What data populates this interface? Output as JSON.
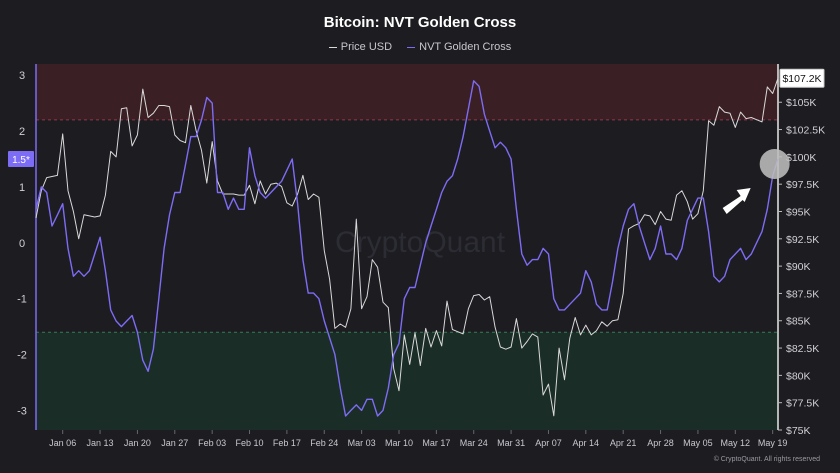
{
  "title": "Bitcoin: NVT Golden Cross",
  "legend": [
    {
      "label": "Price USD",
      "color": "#d9d9d9"
    },
    {
      "label": "NVT Golden Cross",
      "color": "#7d6cf5"
    }
  ],
  "watermark": "CryptoQuant",
  "footer": "© CryptoQuant. All rights reserved",
  "chart_data": {
    "type": "line",
    "x_ticks": [
      "Jan 06",
      "Jan 13",
      "Jan 20",
      "Jan 27",
      "Feb 03",
      "Feb 10",
      "Feb 17",
      "Feb 24",
      "Mar 03",
      "Mar 10",
      "Mar 17",
      "Mar 24",
      "Mar 31",
      "Apr 07",
      "Apr 14",
      "Apr 21",
      "Apr 28",
      "May 05",
      "May 12",
      "May 19"
    ],
    "x_range": [
      "2025-01-01",
      "2025-05-20"
    ],
    "y_left": {
      "ticks": [
        "3",
        "2",
        "1",
        "0",
        "-1",
        "-2",
        "-3"
      ],
      "range": [
        -3.35,
        3.2
      ]
    },
    "y_right": {
      "ticks": [
        "$105K",
        "$102.5K",
        "$100K",
        "$97.5K",
        "$95K",
        "$92.5K",
        "$90K",
        "$87.5K",
        "$85K",
        "$82.5K",
        "$80K",
        "$77.5K",
        "$75K"
      ],
      "range": [
        75000,
        108500
      ]
    },
    "left_marker": "1.5*",
    "right_marker": "$107.2K",
    "bands": [
      {
        "from": 2.2,
        "to": 3.2,
        "color": "#3a1f24"
      },
      {
        "from": -3.35,
        "to": -1.6,
        "color": "#1b2d27"
      }
    ],
    "series": [
      {
        "name": "Price USD",
        "axis": "right",
        "color": "#d9d9d9",
        "x": [
          "2025-01-01",
          "2025-01-02",
          "2025-01-03",
          "2025-01-04",
          "2025-01-05",
          "2025-01-06",
          "2025-01-07",
          "2025-01-08",
          "2025-01-09",
          "2025-01-10",
          "2025-01-11",
          "2025-01-12",
          "2025-01-13",
          "2025-01-14",
          "2025-01-15",
          "2025-01-16",
          "2025-01-17",
          "2025-01-18",
          "2025-01-19",
          "2025-01-20",
          "2025-01-21",
          "2025-01-22",
          "2025-01-23",
          "2025-01-24",
          "2025-01-25",
          "2025-01-26",
          "2025-01-27",
          "2025-01-28",
          "2025-01-29",
          "2025-01-30",
          "2025-01-31",
          "2025-02-01",
          "2025-02-02",
          "2025-02-03",
          "2025-02-04",
          "2025-02-05",
          "2025-02-06",
          "2025-02-07",
          "2025-02-08",
          "2025-02-09",
          "2025-02-10",
          "2025-02-11",
          "2025-02-12",
          "2025-02-13",
          "2025-02-14",
          "2025-02-15",
          "2025-02-16",
          "2025-02-17",
          "2025-02-18",
          "2025-02-19",
          "2025-02-20",
          "2025-02-21",
          "2025-02-22",
          "2025-02-23",
          "2025-02-24",
          "2025-02-25",
          "2025-02-26",
          "2025-02-27",
          "2025-02-28",
          "2025-03-01",
          "2025-03-02",
          "2025-03-03",
          "2025-03-04",
          "2025-03-05",
          "2025-03-06",
          "2025-03-07",
          "2025-03-08",
          "2025-03-09",
          "2025-03-10",
          "2025-03-11",
          "2025-03-12",
          "2025-03-13",
          "2025-03-14",
          "2025-03-15",
          "2025-03-16",
          "2025-03-17",
          "2025-03-18",
          "2025-03-19",
          "2025-03-20",
          "2025-03-21",
          "2025-03-22",
          "2025-03-23",
          "2025-03-24",
          "2025-03-25",
          "2025-03-26",
          "2025-03-27",
          "2025-03-28",
          "2025-03-29",
          "2025-03-30",
          "2025-03-31",
          "2025-04-01",
          "2025-04-02",
          "2025-04-03",
          "2025-04-04",
          "2025-04-05",
          "2025-04-06",
          "2025-04-07",
          "2025-04-08",
          "2025-04-09",
          "2025-04-10",
          "2025-04-11",
          "2025-04-12",
          "2025-04-13",
          "2025-04-14",
          "2025-04-15",
          "2025-04-16",
          "2025-04-17",
          "2025-04-18",
          "2025-04-19",
          "2025-04-20",
          "2025-04-21",
          "2025-04-22",
          "2025-04-23",
          "2025-04-24",
          "2025-04-25",
          "2025-04-26",
          "2025-04-27",
          "2025-04-28",
          "2025-04-29",
          "2025-04-30",
          "2025-05-01",
          "2025-05-02",
          "2025-05-03",
          "2025-05-04",
          "2025-05-05",
          "2025-05-06",
          "2025-05-07",
          "2025-05-08",
          "2025-05-09",
          "2025-05-10",
          "2025-05-11",
          "2025-05-12",
          "2025-05-13",
          "2025-05-14",
          "2025-05-15",
          "2025-05-16",
          "2025-05-17",
          "2025-05-18",
          "2025-05-19",
          "2025-05-20"
        ],
        "values": [
          94400,
          96900,
          98100,
          98200,
          98300,
          102100,
          96900,
          95000,
          92500,
          94700,
          94600,
          94500,
          94600,
          96500,
          100500,
          100000,
          104400,
          104500,
          101000,
          102000,
          106200,
          103600,
          104000,
          104700,
          104700,
          104600,
          102000,
          101500,
          101300,
          104700,
          102400,
          100600,
          97600,
          101400,
          97800,
          96600,
          96600,
          96600,
          96500,
          96500,
          97400,
          95700,
          97800,
          96600,
          97500,
          97600,
          97300,
          95800,
          95500,
          96600,
          98300,
          96100,
          96600,
          96300,
          91400,
          88800,
          84300,
          84700,
          84400,
          86100,
          94300,
          86100,
          87200,
          90600,
          89900,
          86700,
          86200,
          80600,
          78600,
          83700,
          81000,
          83900,
          80900,
          84300,
          82600,
          84100,
          82700,
          86800,
          84200,
          84000,
          83800,
          86100,
          87300,
          87400,
          86900,
          87200,
          84400,
          82600,
          82400,
          82600,
          85200,
          82500,
          83100,
          83800,
          83500,
          78200,
          79200,
          76300,
          82500,
          79600,
          83400,
          85300,
          83700,
          84600,
          83700,
          84100,
          84900,
          84500,
          85000,
          85100,
          87500,
          93400,
          93700,
          93900,
          94700,
          94600,
          93800,
          95000,
          94300,
          94200,
          96500,
          96900,
          95900,
          94300,
          94800,
          96900,
          103300,
          102900,
          104600,
          104100,
          104000,
          102700,
          104100,
          103500,
          103600,
          103400,
          103200,
          106400,
          105800,
          107200
        ]
      },
      {
        "name": "NVT Golden Cross",
        "axis": "left",
        "color": "#7d6cf5",
        "x": [
          "2025-01-01",
          "2025-01-02",
          "2025-01-03",
          "2025-01-04",
          "2025-01-05",
          "2025-01-06",
          "2025-01-07",
          "2025-01-08",
          "2025-01-09",
          "2025-01-10",
          "2025-01-11",
          "2025-01-12",
          "2025-01-13",
          "2025-01-14",
          "2025-01-15",
          "2025-01-16",
          "2025-01-17",
          "2025-01-18",
          "2025-01-19",
          "2025-01-20",
          "2025-01-21",
          "2025-01-22",
          "2025-01-23",
          "2025-01-24",
          "2025-01-25",
          "2025-01-26",
          "2025-01-27",
          "2025-01-28",
          "2025-01-29",
          "2025-01-30",
          "2025-01-31",
          "2025-02-01",
          "2025-02-02",
          "2025-02-03",
          "2025-02-04",
          "2025-02-05",
          "2025-02-06",
          "2025-02-07",
          "2025-02-08",
          "2025-02-09",
          "2025-02-10",
          "2025-02-11",
          "2025-02-12",
          "2025-02-13",
          "2025-02-14",
          "2025-02-15",
          "2025-02-16",
          "2025-02-17",
          "2025-02-18",
          "2025-02-19",
          "2025-02-20",
          "2025-02-21",
          "2025-02-22",
          "2025-02-23",
          "2025-02-24",
          "2025-02-25",
          "2025-02-26",
          "2025-02-27",
          "2025-02-28",
          "2025-03-01",
          "2025-03-02",
          "2025-03-03",
          "2025-03-04",
          "2025-03-05",
          "2025-03-06",
          "2025-03-07",
          "2025-03-08",
          "2025-03-09",
          "2025-03-10",
          "2025-03-11",
          "2025-03-12",
          "2025-03-13",
          "2025-03-14",
          "2025-03-15",
          "2025-03-16",
          "2025-03-17",
          "2025-03-18",
          "2025-03-19",
          "2025-03-20",
          "2025-03-21",
          "2025-03-22",
          "2025-03-23",
          "2025-03-24",
          "2025-03-25",
          "2025-03-26",
          "2025-03-27",
          "2025-03-28",
          "2025-03-29",
          "2025-03-30",
          "2025-03-31",
          "2025-04-01",
          "2025-04-02",
          "2025-04-03",
          "2025-04-04",
          "2025-04-05",
          "2025-04-06",
          "2025-04-07",
          "2025-04-08",
          "2025-04-09",
          "2025-04-10",
          "2025-04-11",
          "2025-04-12",
          "2025-04-13",
          "2025-04-14",
          "2025-04-15",
          "2025-04-16",
          "2025-04-17",
          "2025-04-18",
          "2025-04-19",
          "2025-04-20",
          "2025-04-21",
          "2025-04-22",
          "2025-04-23",
          "2025-04-24",
          "2025-04-25",
          "2025-04-26",
          "2025-04-27",
          "2025-04-28",
          "2025-04-29",
          "2025-04-30",
          "2025-05-01",
          "2025-05-02",
          "2025-05-03",
          "2025-05-04",
          "2025-05-05",
          "2025-05-06",
          "2025-05-07",
          "2025-05-08",
          "2025-05-09",
          "2025-05-10",
          "2025-05-11",
          "2025-05-12",
          "2025-05-13",
          "2025-05-14",
          "2025-05-15",
          "2025-05-16",
          "2025-05-17",
          "2025-05-18",
          "2025-05-19",
          "2025-05-20"
        ],
        "values": [
          0.6,
          1.0,
          0.9,
          0.3,
          0.5,
          0.7,
          -0.1,
          -0.6,
          -0.5,
          -0.6,
          -0.5,
          -0.2,
          0.1,
          -0.5,
          -1.2,
          -1.4,
          -1.5,
          -1.4,
          -1.3,
          -1.6,
          -2.1,
          -2.3,
          -1.9,
          -1.0,
          -0.1,
          0.5,
          0.9,
          0.9,
          1.4,
          1.9,
          1.9,
          2.2,
          2.6,
          2.5,
          0.9,
          0.9,
          0.6,
          0.8,
          0.6,
          0.6,
          1.7,
          1.2,
          0.9,
          0.8,
          0.9,
          1.0,
          1.1,
          1.3,
          1.5,
          0.7,
          -0.3,
          -0.9,
          -0.9,
          -1.0,
          -1.4,
          -1.7,
          -2.0,
          -2.6,
          -3.1,
          -3.0,
          -2.9,
          -3.0,
          -2.8,
          -2.8,
          -3.1,
          -3.0,
          -2.6,
          -2.0,
          -1.8,
          -1.0,
          -0.8,
          -0.8,
          -0.4,
          0.0,
          0.3,
          0.6,
          0.9,
          1.1,
          1.2,
          1.5,
          1.9,
          2.4,
          2.9,
          2.8,
          2.3,
          2.0,
          1.7,
          1.8,
          1.7,
          1.5,
          0.6,
          -0.2,
          -0.4,
          -0.3,
          -0.3,
          -0.1,
          -0.2,
          -1.0,
          -1.2,
          -1.2,
          -1.1,
          -1.0,
          -0.9,
          -0.5,
          -0.7,
          -1.1,
          -1.2,
          -1.2,
          -0.7,
          -0.1,
          0.3,
          0.6,
          0.7,
          0.3,
          0.0,
          -0.3,
          -0.1,
          0.3,
          -0.2,
          -0.2,
          -0.3,
          -0.1,
          0.4,
          0.6,
          0.8,
          0.8,
          0.2,
          -0.6,
          -0.7,
          -0.6,
          -0.3,
          -0.2,
          -0.1,
          -0.3,
          -0.2,
          0.0,
          0.2,
          0.6,
          1.2,
          1.5
        ]
      }
    ]
  }
}
